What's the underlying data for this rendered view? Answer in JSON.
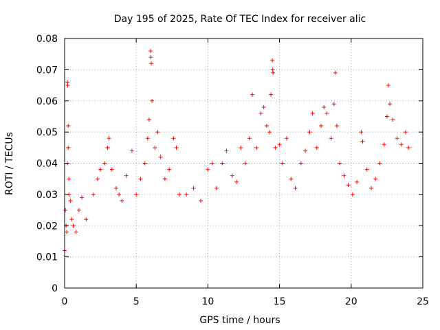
{
  "chart_data": {
    "type": "scatter",
    "title": "Day 195 of 2025, Rate Of TEC Index for receiver alic",
    "xlabel": "GPS time / hours",
    "ylabel": "ROTI / TECUs",
    "xlim": [
      0,
      25
    ],
    "ylim": [
      0,
      0.08
    ],
    "x_ticks": [
      "0",
      "5",
      "10",
      "15",
      "20",
      "25"
    ],
    "y_ticks": [
      "0",
      "0.01",
      "0.02",
      "0.03",
      "0.04",
      "0.05",
      "0.06",
      "0.07",
      "0.08"
    ],
    "grid": true,
    "marker": "+",
    "color": "#ff0000",
    "series": [
      {
        "points": [
          [
            0.0,
            0.012
          ],
          [
            0.05,
            0.025
          ],
          [
            0.1,
            0.02
          ],
          [
            0.15,
            0.018
          ],
          [
            0.2,
            0.066
          ],
          [
            0.22,
            0.065
          ],
          [
            0.25,
            0.052
          ],
          [
            0.25,
            0.045
          ],
          [
            0.2,
            0.04
          ],
          [
            0.3,
            0.035
          ],
          [
            0.3,
            0.03
          ],
          [
            0.4,
            0.028
          ],
          [
            0.5,
            0.022
          ],
          [
            0.6,
            0.02
          ],
          [
            0.8,
            0.018
          ],
          [
            1.0,
            0.025
          ],
          [
            1.2,
            0.029
          ],
          [
            1.5,
            0.022
          ],
          [
            2.0,
            0.03
          ],
          [
            2.3,
            0.035
          ],
          [
            2.5,
            0.038
          ],
          [
            2.8,
            0.04
          ],
          [
            3.0,
            0.045
          ],
          [
            3.1,
            0.048
          ],
          [
            3.3,
            0.038
          ],
          [
            3.6,
            0.032
          ],
          [
            3.8,
            0.03
          ],
          [
            4.0,
            0.028
          ],
          [
            4.3,
            0.036
          ],
          [
            4.7,
            0.044
          ],
          [
            5.0,
            0.03
          ],
          [
            5.3,
            0.035
          ],
          [
            5.6,
            0.04
          ],
          [
            5.8,
            0.048
          ],
          [
            5.9,
            0.054
          ],
          [
            6.0,
            0.076
          ],
          [
            6.02,
            0.074
          ],
          [
            6.05,
            0.072
          ],
          [
            6.1,
            0.06
          ],
          [
            6.3,
            0.045
          ],
          [
            6.5,
            0.05
          ],
          [
            6.7,
            0.042
          ],
          [
            7.0,
            0.035
          ],
          [
            7.3,
            0.038
          ],
          [
            7.6,
            0.048
          ],
          [
            7.8,
            0.045
          ],
          [
            8.0,
            0.03
          ],
          [
            8.5,
            0.03
          ],
          [
            9.0,
            0.032
          ],
          [
            9.5,
            0.028
          ],
          [
            10.0,
            0.038
          ],
          [
            10.3,
            0.04
          ],
          [
            10.6,
            0.032
          ],
          [
            11.0,
            0.04
          ],
          [
            11.3,
            0.044
          ],
          [
            11.7,
            0.036
          ],
          [
            12.0,
            0.034
          ],
          [
            12.3,
            0.045
          ],
          [
            12.6,
            0.04
          ],
          [
            12.9,
            0.048
          ],
          [
            13.1,
            0.062
          ],
          [
            13.4,
            0.045
          ],
          [
            13.7,
            0.056
          ],
          [
            13.9,
            0.058
          ],
          [
            14.1,
            0.052
          ],
          [
            14.3,
            0.05
          ],
          [
            14.4,
            0.062
          ],
          [
            14.5,
            0.073
          ],
          [
            14.52,
            0.07
          ],
          [
            14.55,
            0.069
          ],
          [
            14.7,
            0.045
          ],
          [
            15.0,
            0.046
          ],
          [
            15.2,
            0.04
          ],
          [
            15.5,
            0.048
          ],
          [
            15.8,
            0.035
          ],
          [
            16.1,
            0.032
          ],
          [
            16.5,
            0.04
          ],
          [
            16.8,
            0.044
          ],
          [
            17.1,
            0.05
          ],
          [
            17.3,
            0.056
          ],
          [
            17.6,
            0.045
          ],
          [
            17.9,
            0.052
          ],
          [
            18.1,
            0.058
          ],
          [
            18.3,
            0.056
          ],
          [
            18.6,
            0.048
          ],
          [
            18.8,
            0.059
          ],
          [
            18.9,
            0.069
          ],
          [
            19.0,
            0.052
          ],
          [
            19.2,
            0.04
          ],
          [
            19.5,
            0.036
          ],
          [
            19.8,
            0.033
          ],
          [
            20.1,
            0.03
          ],
          [
            20.4,
            0.034
          ],
          [
            20.7,
            0.05
          ],
          [
            20.8,
            0.047
          ],
          [
            21.1,
            0.038
          ],
          [
            21.4,
            0.032
          ],
          [
            21.7,
            0.035
          ],
          [
            22.0,
            0.04
          ],
          [
            22.3,
            0.046
          ],
          [
            22.5,
            0.055
          ],
          [
            22.6,
            0.065
          ],
          [
            22.7,
            0.059
          ],
          [
            22.9,
            0.054
          ],
          [
            23.2,
            0.048
          ],
          [
            23.5,
            0.046
          ],
          [
            23.8,
            0.05
          ],
          [
            24.0,
            0.045
          ]
        ]
      }
    ]
  }
}
